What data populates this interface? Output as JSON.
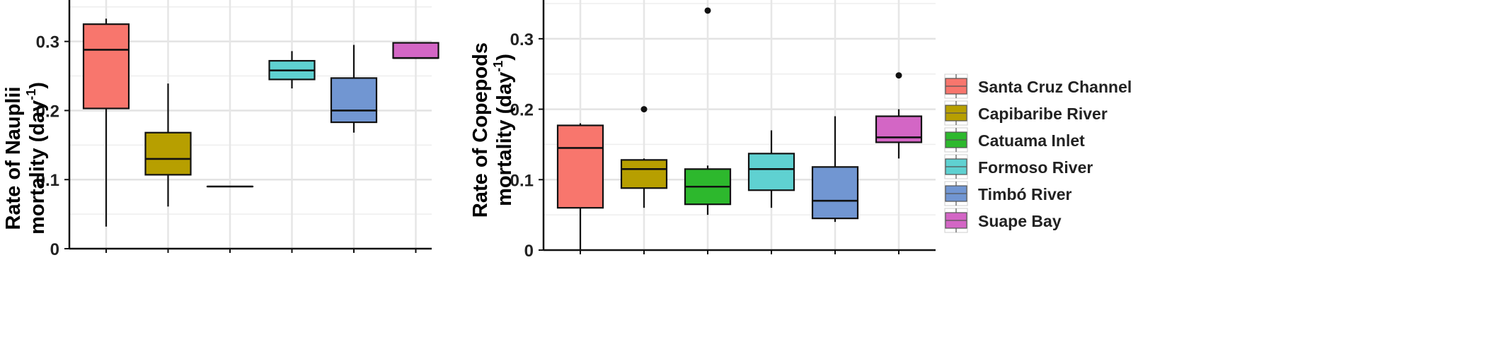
{
  "chart_data": [
    {
      "type": "box",
      "ylabel_line1": "Rate of Nauplii",
      "ylabel_line2": "mortality (day",
      "ylabel_sup": "-1",
      "ylabel_close": ")",
      "ylim": [
        0,
        0.36
      ],
      "yticks": [
        "0",
        "0.1",
        "0.2",
        "0.3"
      ],
      "ytick_values": [
        0,
        0.1,
        0.2,
        0.3
      ],
      "grid": true,
      "series": [
        {
          "name": "Santa Cruz Channel",
          "whisker_low": 0.032,
          "q1": 0.203,
          "median": 0.288,
          "q3": 0.325,
          "whisker_high": 0.333,
          "outliers": []
        },
        {
          "name": "Capibaribe River",
          "whisker_low": 0.061,
          "q1": 0.107,
          "median": 0.13,
          "q3": 0.168,
          "whisker_high": 0.239,
          "outliers": []
        },
        {
          "name": "Catuama Inlet",
          "whisker_low": 0.09,
          "q1": 0.09,
          "median": 0.09,
          "q3": 0.09,
          "whisker_high": 0.09,
          "outliers": []
        },
        {
          "name": "Formoso River",
          "whisker_low": 0.232,
          "q1": 0.245,
          "median": 0.258,
          "q3": 0.272,
          "whisker_high": 0.286,
          "outliers": []
        },
        {
          "name": "Timbó River",
          "whisker_low": 0.168,
          "q1": 0.183,
          "median": 0.2,
          "q3": 0.247,
          "whisker_high": 0.295,
          "outliers": []
        },
        {
          "name": "Suape Bay",
          "whisker_low": 0.276,
          "q1": 0.276,
          "median": 0.276,
          "q3": 0.298,
          "whisker_high": 0.298,
          "outliers": []
        }
      ]
    },
    {
      "type": "box",
      "ylabel_line1": "Rate of Copepods",
      "ylabel_line2": "mortality (day",
      "ylabel_sup": "-1",
      "ylabel_close": ")",
      "ylim": [
        0,
        0.355
      ],
      "yticks": [
        "0",
        "0.1",
        "0.2",
        "0.3"
      ],
      "ytick_values": [
        0,
        0.1,
        0.2,
        0.3
      ],
      "grid": true,
      "legend_position": "right",
      "series": [
        {
          "name": "Santa Cruz Channel",
          "whisker_low": 0.0,
          "q1": 0.06,
          "median": 0.145,
          "q3": 0.177,
          "whisker_high": 0.18,
          "outliers": []
        },
        {
          "name": "Capibaribe River",
          "whisker_low": 0.06,
          "q1": 0.088,
          "median": 0.115,
          "q3": 0.128,
          "whisker_high": 0.13,
          "outliers": [
            0.2
          ]
        },
        {
          "name": "Catuama Inlet",
          "whisker_low": 0.05,
          "q1": 0.065,
          "median": 0.09,
          "q3": 0.115,
          "whisker_high": 0.12,
          "outliers": [
            0.34
          ]
        },
        {
          "name": "Formoso River",
          "whisker_low": 0.06,
          "q1": 0.085,
          "median": 0.115,
          "q3": 0.137,
          "whisker_high": 0.17,
          "outliers": []
        },
        {
          "name": "Timbó River",
          "whisker_low": 0.04,
          "q1": 0.045,
          "median": 0.07,
          "q3": 0.118,
          "whisker_high": 0.19,
          "outliers": []
        },
        {
          "name": "Suape Bay",
          "whisker_low": 0.13,
          "q1": 0.153,
          "median": 0.16,
          "q3": 0.19,
          "whisker_high": 0.2,
          "outliers": [
            0.248
          ]
        }
      ]
    }
  ],
  "legend": {
    "items": [
      {
        "label": "Santa Cruz Channel",
        "color": "#F8766D"
      },
      {
        "label": "Capibaribe River",
        "color": "#B79F00"
      },
      {
        "label": "Catuama Inlet",
        "color": "#2DB82D"
      },
      {
        "label": "Formoso River",
        "color": "#5FD1D1"
      },
      {
        "label": "Timbó River",
        "color": "#7196D2"
      },
      {
        "label": "Suape Bay",
        "color": "#D366C5"
      }
    ]
  }
}
